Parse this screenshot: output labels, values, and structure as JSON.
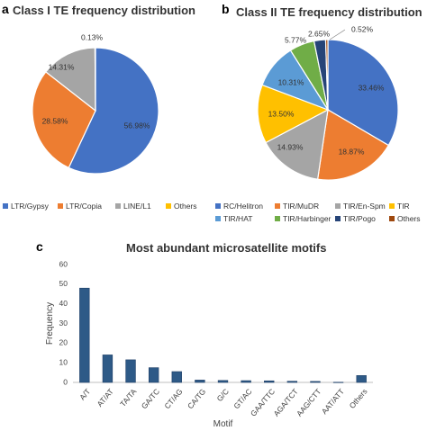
{
  "panels": {
    "a": {
      "letter": "a",
      "title": "Class I TE frequency distribution"
    },
    "b": {
      "letter": "b",
      "title": "Class II TE frequency distribution"
    },
    "c": {
      "letter": "c",
      "title": "Most abundant microsatellite motifs"
    }
  },
  "chart_data": [
    {
      "type": "pie",
      "title": "Class I TE frequency distribution",
      "labels": [
        "LTR/Gypsy",
        "LTR/Copia",
        "LINE/L1",
        "Others"
      ],
      "values": [
        56.98,
        28.58,
        14.31,
        0.13
      ],
      "value_labels": [
        "56.98%",
        "28.58%",
        "14.31%",
        "0.13%"
      ],
      "colors": [
        "#4472C4",
        "#ED7D31",
        "#A5A5A5",
        "#FFC000"
      ],
      "legend_position": "bottom"
    },
    {
      "type": "pie",
      "title": "Class II TE frequency distribution",
      "labels": [
        "RC/Helitron",
        "TIR/MuDR",
        "TIR/En-Spm",
        "TIR",
        "TIR/HAT",
        "TIR/Harbinger",
        "TIR/Pogo",
        "Others"
      ],
      "values": [
        33.46,
        18.87,
        14.93,
        13.5,
        10.31,
        5.77,
        2.65,
        0.52
      ],
      "value_labels": [
        "33.46%",
        "18.87%",
        "14.93%",
        "13.50%",
        "10.31%",
        "5.77%",
        "2.65%",
        "0.52%"
      ],
      "colors": [
        "#4472C4",
        "#ED7D31",
        "#A5A5A5",
        "#FFC000",
        "#5B9BD5",
        "#70AD47",
        "#264478",
        "#9E480E"
      ],
      "legend_position": "bottom"
    },
    {
      "type": "bar",
      "title": "Most abundant microsatellite motifs",
      "categories": [
        "A/T",
        "AT/AT",
        "TA/TA",
        "GA/TC",
        "CT/AG",
        "CA/TG",
        "G/C",
        "GT/AC",
        "GAA/TTC",
        "AGA/TCT",
        "AAG/CTT",
        "AAT/ATT",
        "Others"
      ],
      "values": [
        48,
        14,
        11.5,
        7.5,
        5.5,
        1.2,
        1,
        0.9,
        0.8,
        0.6,
        0.5,
        0.1,
        3.5
      ],
      "xlabel": "Motif",
      "ylabel": "Frequency",
      "ylim": [
        0,
        60
      ],
      "yticks": [
        0,
        10,
        20,
        30,
        40,
        50,
        60
      ],
      "bar_color": "#2E5A87",
      "grid": false,
      "legend": "none"
    }
  ]
}
